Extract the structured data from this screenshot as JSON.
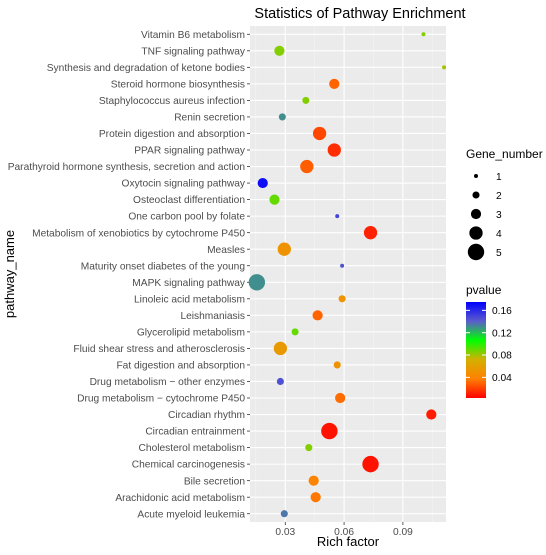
{
  "chart_data": {
    "type": "scatter",
    "title": "Statistics of Pathway Enrichment",
    "xlabel": "Rich factor",
    "ylabel": "pathway_name",
    "xlim": [
      0.012,
      0.112
    ],
    "x_ticks": [
      {
        "value": 0.03,
        "label": "0.03"
      },
      {
        "value": 0.06,
        "label": "0.06"
      },
      {
        "value": 0.09,
        "label": "0.09"
      }
    ],
    "grid": true,
    "panel_background": "#ebebeb",
    "gridline_color": "#ffffff",
    "categories": [
      "Acute myeloid leukemia",
      "Arachidonic acid metabolism",
      "Bile secretion",
      "Chemical carcinogenesis",
      "Cholesterol metabolism",
      "Circadian entrainment",
      "Circadian rhythm",
      "Drug metabolism − cytochrome P450",
      "Drug metabolism − other enzymes",
      "Fat digestion and absorption",
      "Fluid shear stress and atherosclerosis",
      "Glycerolipid metabolism",
      "Leishmaniasis",
      "Linoleic acid metabolism",
      "MAPK signaling pathway",
      "Maturity onset diabetes of the young",
      "Measles",
      "Metabolism of xenobiotics by cytochrome P450",
      "One carbon pool by folate",
      "Osteoclast differentiation",
      "Oxytocin signaling pathway",
      "Parathyroid hormone synthesis, secretion and action",
      "PPAR signaling pathway",
      "Protein digestion and absorption",
      "Renin secretion",
      "Staphylococcus aureus infection",
      "Steroid hormone biosynthesis",
      "Synthesis and degradation of ketone bodies",
      "TNF signaling pathway",
      "Vitamin B6 metabolism"
    ],
    "points": [
      {
        "pathway": "Acute myeloid leukemia",
        "rich_factor": 0.0295,
        "gene_number": 2,
        "pvalue": 0.135
      },
      {
        "pathway": "Arachidonic acid metabolism",
        "rich_factor": 0.0455,
        "gene_number": 3,
        "pvalue": 0.035
      },
      {
        "pathway": "Bile secretion",
        "rich_factor": 0.0445,
        "gene_number": 3,
        "pvalue": 0.04
      },
      {
        "pathway": "Chemical carcinogenesis",
        "rich_factor": 0.0735,
        "gene_number": 5,
        "pvalue": 0.008
      },
      {
        "pathway": "Cholesterol metabolism",
        "rich_factor": 0.042,
        "gene_number": 2,
        "pvalue": 0.085
      },
      {
        "pathway": "Circadian entrainment",
        "rich_factor": 0.0525,
        "gene_number": 5,
        "pvalue": 0.008
      },
      {
        "pathway": "Circadian rhythm",
        "rich_factor": 0.1045,
        "gene_number": 3,
        "pvalue": 0.01
      },
      {
        "pathway": "Drug metabolism − cytochrome P450",
        "rich_factor": 0.058,
        "gene_number": 3,
        "pvalue": 0.032
      },
      {
        "pathway": "Drug metabolism − other enzymes",
        "rich_factor": 0.0275,
        "gene_number": 2,
        "pvalue": 0.145
      },
      {
        "pathway": "Fat digestion and absorption",
        "rich_factor": 0.0565,
        "gene_number": 2,
        "pvalue": 0.05
      },
      {
        "pathway": "Fluid shear stress and atherosclerosis",
        "rich_factor": 0.0275,
        "gene_number": 4,
        "pvalue": 0.055
      },
      {
        "pathway": "Glycerolipid metabolism",
        "rich_factor": 0.035,
        "gene_number": 2,
        "pvalue": 0.09
      },
      {
        "pathway": "Leishmaniasis",
        "rich_factor": 0.0465,
        "gene_number": 3,
        "pvalue": 0.03
      },
      {
        "pathway": "Linoleic acid metabolism",
        "rich_factor": 0.059,
        "gene_number": 2,
        "pvalue": 0.052
      },
      {
        "pathway": "MAPK signaling pathway",
        "rich_factor": 0.0155,
        "gene_number": 5,
        "pvalue": 0.13
      },
      {
        "pathway": "Maturity onset diabetes of the young",
        "rich_factor": 0.059,
        "gene_number": 1,
        "pvalue": 0.145
      },
      {
        "pathway": "Measles",
        "rich_factor": 0.0295,
        "gene_number": 4,
        "pvalue": 0.05
      },
      {
        "pathway": "Metabolism of xenobiotics by cytochrome P450",
        "rich_factor": 0.0735,
        "gene_number": 4,
        "pvalue": 0.012
      },
      {
        "pathway": "One carbon pool by folate",
        "rich_factor": 0.0565,
        "gene_number": 1,
        "pvalue": 0.15
      },
      {
        "pathway": "Osteoclast differentiation",
        "rich_factor": 0.0245,
        "gene_number": 3,
        "pvalue": 0.09
      },
      {
        "pathway": "Oxytocin signaling pathway",
        "rich_factor": 0.0185,
        "gene_number": 3,
        "pvalue": 0.17
      },
      {
        "pathway": "Parathyroid hormone synthesis, secretion and action",
        "rich_factor": 0.041,
        "gene_number": 4,
        "pvalue": 0.028
      },
      {
        "pathway": "PPAR signaling pathway",
        "rich_factor": 0.055,
        "gene_number": 4,
        "pvalue": 0.015
      },
      {
        "pathway": "Protein digestion and absorption",
        "rich_factor": 0.0475,
        "gene_number": 4,
        "pvalue": 0.022
      },
      {
        "pathway": "Renin secretion",
        "rich_factor": 0.0285,
        "gene_number": 2,
        "pvalue": 0.13
      },
      {
        "pathway": "Staphylococcus aureus infection",
        "rich_factor": 0.0405,
        "gene_number": 2,
        "pvalue": 0.085
      },
      {
        "pathway": "Steroid hormone biosynthesis",
        "rich_factor": 0.055,
        "gene_number": 3,
        "pvalue": 0.03
      },
      {
        "pathway": "Synthesis and degradation of ketone bodies",
        "rich_factor": 0.111,
        "gene_number": 1,
        "pvalue": 0.08
      },
      {
        "pathway": "TNF signaling pathway",
        "rich_factor": 0.027,
        "gene_number": 3,
        "pvalue": 0.085
      },
      {
        "pathway": "Vitamin B6 metabolism",
        "rich_factor": 0.1005,
        "gene_number": 1,
        "pvalue": 0.085
      }
    ],
    "legend_size": {
      "title": "Gene_number",
      "placement": "right",
      "entries": [
        {
          "value": 1,
          "label": "1"
        },
        {
          "value": 2,
          "label": "2"
        },
        {
          "value": 3,
          "label": "3"
        },
        {
          "value": 4,
          "label": "4"
        },
        {
          "value": 5,
          "label": "5"
        }
      ]
    },
    "legend_color": {
      "title": "pvalue",
      "placement": "right",
      "range": [
        0.003,
        0.175
      ],
      "ticks": [
        {
          "value": 0.16,
          "label": "0.16"
        },
        {
          "value": 0.12,
          "label": "0.12"
        },
        {
          "value": 0.08,
          "label": "0.08"
        },
        {
          "value": 0.04,
          "label": "0.04"
        }
      ],
      "gradient": [
        "#ff0000",
        "#ff8000",
        "#d4b000",
        "#00ff00",
        "#5c5ccc",
        "#0000ff"
      ]
    }
  }
}
